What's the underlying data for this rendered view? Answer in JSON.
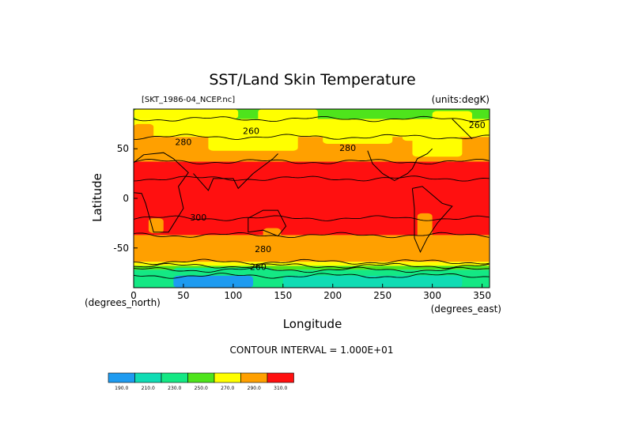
{
  "chart_data": {
    "type": "heatmap",
    "title": "SST/Land Skin Temperature",
    "source_label": "[SKT_1986-04_NCEP.nc]",
    "units_label": "(units:degK)",
    "xlabel": "Longitude",
    "ylabel": "Latitude",
    "x_units": "(degrees_east)",
    "y_units": "(degrees_north)",
    "xlim": [
      0,
      357.5
    ],
    "ylim": [
      -90,
      90
    ],
    "x_ticks": [
      0,
      50,
      100,
      150,
      200,
      250,
      300,
      350
    ],
    "y_ticks": [
      50,
      0,
      -50
    ],
    "contour_interval_text": "CONTOUR INTERVAL = 1.000E+01",
    "contour_labels": [
      {
        "text": "260",
        "lon": 118,
        "lat": 68
      },
      {
        "text": "260",
        "lon": 345,
        "lat": 74
      },
      {
        "text": "280",
        "lon": 50,
        "lat": 57
      },
      {
        "text": "280",
        "lon": 215,
        "lat": 51
      },
      {
        "text": "300",
        "lon": 65,
        "lat": -19
      },
      {
        "text": "280",
        "lon": 130,
        "lat": -51
      },
      {
        "text": "260",
        "lon": 125,
        "lat": -69
      }
    ],
    "colorbar": {
      "levels": [
        "190.0",
        "210.0",
        "230.0",
        "250.0",
        "270.0",
        "290.0",
        "310.0"
      ],
      "colors": [
        "#1e9bf0",
        "#10dcb4",
        "#14e884",
        "#4ee41c",
        "#ffff00",
        "#ffa000",
        "#ff1010"
      ]
    },
    "bands": [
      {
        "from_lat": 90,
        "to_lat": 80,
        "color": "#4ee41c"
      },
      {
        "from_lat": 80,
        "to_lat": 62,
        "color": "#ffff00"
      },
      {
        "from_lat": 62,
        "to_lat": 37,
        "color": "#ffa000"
      },
      {
        "from_lat": 37,
        "to_lat": -37,
        "color": "#ff1010"
      },
      {
        "from_lat": -37,
        "to_lat": -64,
        "color": "#ffa000"
      },
      {
        "from_lat": -64,
        "to_lat": -68,
        "color": "#ffff00"
      },
      {
        "from_lat": -68,
        "to_lat": -72,
        "color": "#4ee41c"
      },
      {
        "from_lat": -72,
        "to_lat": -90,
        "color": "#14e884"
      }
    ],
    "patches": [
      {
        "lon": [
          0,
          105
        ],
        "lat": [
          80,
          90
        ],
        "color": "#ffff00"
      },
      {
        "lon": [
          125,
          185
        ],
        "lat": [
          78,
          90
        ],
        "color": "#ffff00"
      },
      {
        "lon": [
          300,
          340
        ],
        "lat": [
          75,
          88
        ],
        "color": "#ffff00"
      },
      {
        "lon": [
          75,
          165
        ],
        "lat": [
          48,
          75
        ],
        "color": "#ffff00"
      },
      {
        "lon": [
          190,
          260
        ],
        "lat": [
          55,
          75
        ],
        "color": "#ffff00"
      },
      {
        "lon": [
          270,
          300
        ],
        "lat": [
          58,
          74
        ],
        "color": "#ffff00"
      },
      {
        "lon": [
          0,
          20
        ],
        "lat": [
          40,
          75
        ],
        "color": "#ffa000"
      },
      {
        "lon": [
          280,
          330
        ],
        "lat": [
          42,
          62
        ],
        "color": "#ffff00"
      },
      {
        "lon": [
          40,
          140
        ],
        "lat": [
          -90,
          -70
        ],
        "color": "#14e884"
      },
      {
        "lon": [
          40,
          120
        ],
        "lat": [
          -90,
          -78
        ],
        "color": "#1e9bf0"
      },
      {
        "lon": [
          150,
          330
        ],
        "lat": [
          -90,
          -78
        ],
        "color": "#10dcb4"
      },
      {
        "lon": [
          285,
          300
        ],
        "lat": [
          -55,
          -15
        ],
        "color": "#ffa000"
      },
      {
        "lon": [
          15,
          30
        ],
        "lat": [
          -35,
          -20
        ],
        "color": "#ffa000"
      },
      {
        "lon": [
          130,
          148
        ],
        "lat": [
          -42,
          -30
        ],
        "color": "#ffa000"
      }
    ]
  }
}
